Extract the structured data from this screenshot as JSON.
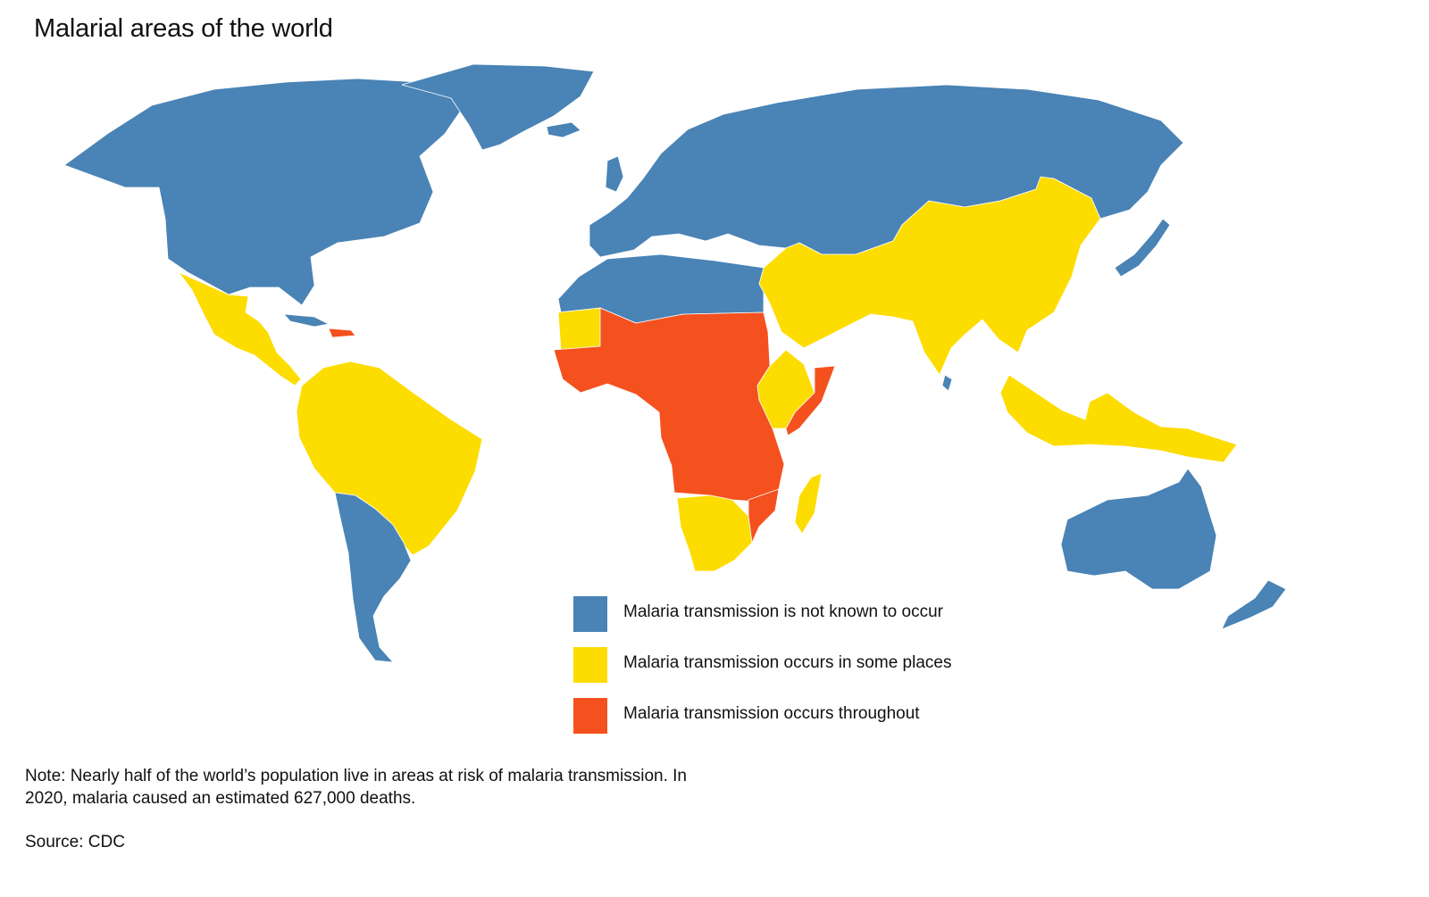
{
  "title": "Malarial areas of the world",
  "colors": {
    "not_known": "#4a83b5",
    "some_places": "#fddc00",
    "throughout": "#f4511e"
  },
  "legend": [
    {
      "label": "Malaria transmission is not known to occur",
      "color": "#4a83b5"
    },
    {
      "label": "Malaria transmission occurs in some places",
      "color": "#fddc00"
    },
    {
      "label": "Malaria transmission occurs throughout",
      "color": "#f4511e"
    }
  ],
  "note": "Note: Nearly half of the world’s population live in areas at risk of malaria transmission. In 2020, malaria caused an estimated 627,000 deaths.",
  "source": "Source: CDC",
  "regions": [
    {
      "name": "north-america",
      "status": "not_known"
    },
    {
      "name": "greenland",
      "status": "not_known"
    },
    {
      "name": "mexico-central-america",
      "status": "some_places"
    },
    {
      "name": "cuba",
      "status": "not_known"
    },
    {
      "name": "hispaniola",
      "status": "throughout"
    },
    {
      "name": "south-america-tropical",
      "status": "some_places"
    },
    {
      "name": "south-america-southern-cone",
      "status": "not_known"
    },
    {
      "name": "europe-russia-central-asia",
      "status": "not_known"
    },
    {
      "name": "iceland",
      "status": "not_known"
    },
    {
      "name": "united-kingdom",
      "status": "not_known"
    },
    {
      "name": "north-africa",
      "status": "not_known"
    },
    {
      "name": "mauritania-western-sahara",
      "status": "some_places"
    },
    {
      "name": "sub-saharan-africa",
      "status": "throughout"
    },
    {
      "name": "horn-of-africa",
      "status": "some_places"
    },
    {
      "name": "somalia",
      "status": "throughout"
    },
    {
      "name": "southern-africa",
      "status": "some_places"
    },
    {
      "name": "mozambique",
      "status": "throughout"
    },
    {
      "name": "madagascar",
      "status": "some_places"
    },
    {
      "name": "middle-east-south-asia-china",
      "status": "some_places"
    },
    {
      "name": "sri-lanka",
      "status": "not_known"
    },
    {
      "name": "japan",
      "status": "not_known"
    },
    {
      "name": "southeast-asia-islands",
      "status": "some_places"
    },
    {
      "name": "australia",
      "status": "not_known"
    },
    {
      "name": "new-zealand",
      "status": "not_known"
    }
  ]
}
